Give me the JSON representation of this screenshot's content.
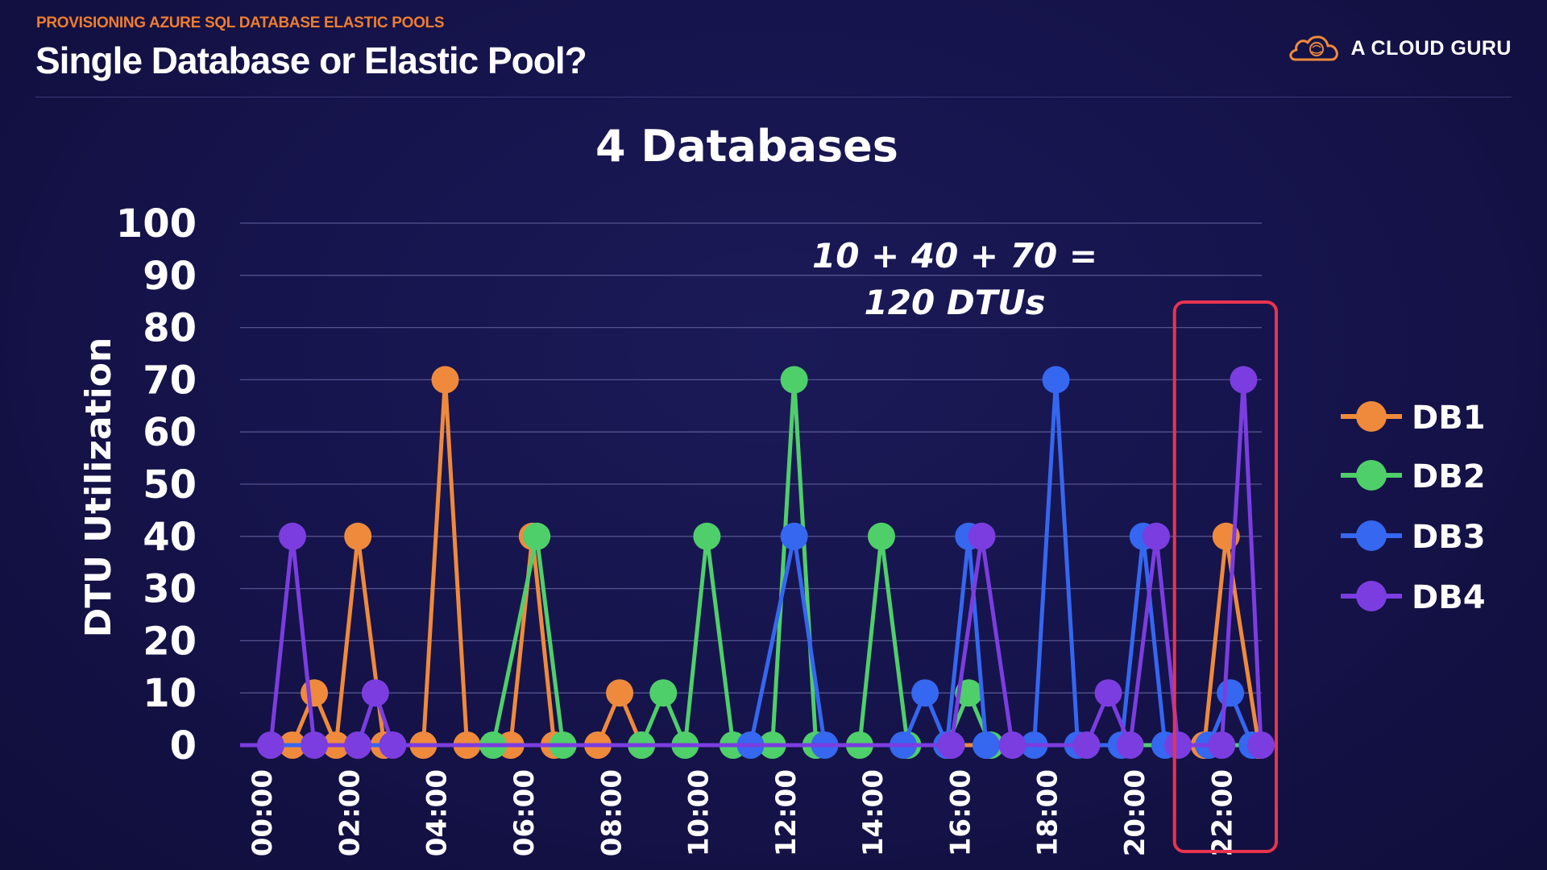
{
  "header": {
    "kicker": "PROVISIONING AZURE SQL DATABASE ELASTIC POOLS",
    "title": "Single Database or Elastic Pool?",
    "brand": "A CLOUD GURU",
    "brand_icon": "cloud-logo-icon"
  },
  "colors": {
    "background": "#15134a",
    "kicker": "#ef7d2f",
    "DB1": "#ef8a3c",
    "DB2": "#4fcf6a",
    "DB3": "#3567f0",
    "DB4": "#7b3de0",
    "highlight_box": "#e8344e"
  },
  "chart_data": {
    "type": "line",
    "title": "4 Databases",
    "ylabel": "DTU Utilization",
    "xlabel": "",
    "ylim": [
      0,
      100
    ],
    "yticks": [
      0,
      10,
      20,
      30,
      40,
      50,
      60,
      70,
      80,
      90,
      100
    ],
    "x_range_hours": [
      -0.5,
      23.25
    ],
    "xticks": [
      "00:00",
      "02:00",
      "04:00",
      "06:00",
      "08:00",
      "10:00",
      "12:00",
      "14:00",
      "16:00",
      "18:00",
      "20:00",
      "22:00"
    ],
    "legend_position": "right",
    "grid": true,
    "annotation": {
      "line1": "10 + 40 + 70 =",
      "line2": "120 DTUs"
    },
    "highlight": {
      "label": "22:00",
      "x_range_hours": [
        21.25,
        23.25
      ]
    },
    "series": [
      {
        "name": "DB1",
        "color": "#ef8a3c",
        "points": [
          {
            "hour": 0.7,
            "value": 0
          },
          {
            "hour": 1.2,
            "value": 10
          },
          {
            "hour": 1.7,
            "value": 0
          },
          {
            "hour": 2.2,
            "value": 40
          },
          {
            "hour": 2.8,
            "value": 0
          },
          {
            "hour": 3.7,
            "value": 0
          },
          {
            "hour": 4.2,
            "value": 70
          },
          {
            "hour": 4.7,
            "value": 0
          },
          {
            "hour": 5.7,
            "value": 0
          },
          {
            "hour": 6.2,
            "value": 40
          },
          {
            "hour": 6.7,
            "value": 0
          },
          {
            "hour": 7.7,
            "value": 0
          },
          {
            "hour": 8.2,
            "value": 10
          },
          {
            "hour": 8.7,
            "value": 0
          },
          {
            "hour": 21.6,
            "value": 0
          },
          {
            "hour": 22.1,
            "value": 40
          },
          {
            "hour": 22.85,
            "value": 0
          }
        ]
      },
      {
        "name": "DB2",
        "color": "#4fcf6a",
        "points": [
          {
            "hour": 5.3,
            "value": 0
          },
          {
            "hour": 6.3,
            "value": 40
          },
          {
            "hour": 6.9,
            "value": 0
          },
          {
            "hour": 8.7,
            "value": 0
          },
          {
            "hour": 9.2,
            "value": 10
          },
          {
            "hour": 9.7,
            "value": 0
          },
          {
            "hour": 10.2,
            "value": 40
          },
          {
            "hour": 10.8,
            "value": 0
          },
          {
            "hour": 11.7,
            "value": 0
          },
          {
            "hour": 12.2,
            "value": 70
          },
          {
            "hour": 12.7,
            "value": 0
          },
          {
            "hour": 13.7,
            "value": 0
          },
          {
            "hour": 14.2,
            "value": 40
          },
          {
            "hour": 14.8,
            "value": 0
          },
          {
            "hour": 15.7,
            "value": 0
          },
          {
            "hour": 16.2,
            "value": 10
          },
          {
            "hour": 16.7,
            "value": 0
          }
        ]
      },
      {
        "name": "DB3",
        "color": "#3567f0",
        "points": [
          {
            "hour": 11.2,
            "value": 0
          },
          {
            "hour": 12.2,
            "value": 40
          },
          {
            "hour": 12.9,
            "value": 0
          },
          {
            "hour": 14.7,
            "value": 0
          },
          {
            "hour": 15.2,
            "value": 10
          },
          {
            "hour": 15.7,
            "value": 0
          },
          {
            "hour": 16.2,
            "value": 40
          },
          {
            "hour": 16.6,
            "value": 0
          },
          {
            "hour": 17.7,
            "value": 0
          },
          {
            "hour": 18.2,
            "value": 70
          },
          {
            "hour": 18.7,
            "value": 0
          },
          {
            "hour": 19.7,
            "value": 0
          },
          {
            "hour": 20.2,
            "value": 40
          },
          {
            "hour": 20.7,
            "value": 0
          },
          {
            "hour": 21.7,
            "value": 0
          },
          {
            "hour": 22.2,
            "value": 10
          },
          {
            "hour": 22.7,
            "value": 0
          }
        ]
      },
      {
        "name": "DB4",
        "color": "#7b3de0",
        "points": [
          {
            "hour": 0.2,
            "value": 0
          },
          {
            "hour": 0.7,
            "value": 40
          },
          {
            "hour": 1.2,
            "value": 0
          },
          {
            "hour": 2.2,
            "value": 0
          },
          {
            "hour": 2.6,
            "value": 10
          },
          {
            "hour": 3.0,
            "value": 0
          },
          {
            "hour": 15.8,
            "value": 0
          },
          {
            "hour": 16.5,
            "value": 40
          },
          {
            "hour": 17.2,
            "value": 0
          },
          {
            "hour": 18.9,
            "value": 0
          },
          {
            "hour": 19.4,
            "value": 10
          },
          {
            "hour": 19.9,
            "value": 0
          },
          {
            "hour": 20.5,
            "value": 40
          },
          {
            "hour": 21.0,
            "value": 0
          },
          {
            "hour": 22.0,
            "value": 0
          },
          {
            "hour": 22.5,
            "value": 70
          },
          {
            "hour": 22.9,
            "value": 0
          }
        ]
      }
    ]
  }
}
